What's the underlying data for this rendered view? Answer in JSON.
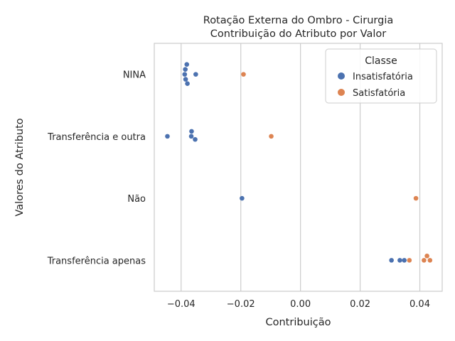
{
  "chart_data": {
    "type": "scatter",
    "variant": "strip",
    "title": "Rotação Externa do Ombro - Cirurgia",
    "subtitle": "Contribuição do Atributo por Valor",
    "xlabel": "Contribuição",
    "ylabel": "Valores do Atributo",
    "xlim": [
      -0.049,
      0.0475
    ],
    "x_ticks": [
      -0.04,
      -0.02,
      0.0,
      0.02,
      0.04
    ],
    "x_tick_labels": [
      "−0.04",
      "−0.02",
      "0.00",
      "0.02",
      "0.04"
    ],
    "categories": [
      "NINA",
      "Transferência e outra",
      "Não",
      "Transferência apenas"
    ],
    "grid": "vertical",
    "legend": {
      "title": "Classe",
      "placement": "top-right"
    },
    "series": [
      {
        "name": "Insatisfatória",
        "color": "#4c72b0",
        "points": [
          {
            "category": "NINA",
            "x": -0.0381,
            "jitter": -0.16
          },
          {
            "category": "NINA",
            "x": -0.0386,
            "jitter": -0.08
          },
          {
            "category": "NINA",
            "x": -0.0388,
            "jitter": 0.0
          },
          {
            "category": "NINA",
            "x": -0.0385,
            "jitter": 0.08
          },
          {
            "category": "NINA",
            "x": -0.0379,
            "jitter": 0.15
          },
          {
            "category": "NINA",
            "x": -0.0351,
            "jitter": 0.0
          },
          {
            "category": "Transferência e outra",
            "x": -0.0446,
            "jitter": 0.0
          },
          {
            "category": "Transferência e outra",
            "x": -0.0365,
            "jitter": -0.08
          },
          {
            "category": "Transferência e outra",
            "x": -0.0366,
            "jitter": 0.0
          },
          {
            "category": "Transferência e outra",
            "x": -0.0353,
            "jitter": 0.05
          },
          {
            "category": "Não",
            "x": -0.0196,
            "jitter": 0.0
          },
          {
            "category": "Transferência apenas",
            "x": 0.0305,
            "jitter": 0.0
          },
          {
            "category": "Transferência apenas",
            "x": 0.0333,
            "jitter": 0.0
          },
          {
            "category": "Transferência apenas",
            "x": 0.0348,
            "jitter": 0.0
          }
        ]
      },
      {
        "name": "Satisfatória",
        "color": "#dd8452",
        "points": [
          {
            "category": "NINA",
            "x": -0.0191,
            "jitter": 0.0
          },
          {
            "category": "Transferência e outra",
            "x": -0.0098,
            "jitter": 0.0
          },
          {
            "category": "Não",
            "x": 0.0387,
            "jitter": 0.0
          },
          {
            "category": "Transferência apenas",
            "x": 0.0365,
            "jitter": 0.0
          },
          {
            "category": "Transferência apenas",
            "x": 0.0414,
            "jitter": 0.0
          },
          {
            "category": "Transferência apenas",
            "x": 0.0424,
            "jitter": -0.07
          },
          {
            "category": "Transferência apenas",
            "x": 0.0434,
            "jitter": 0.0
          }
        ]
      }
    ]
  }
}
